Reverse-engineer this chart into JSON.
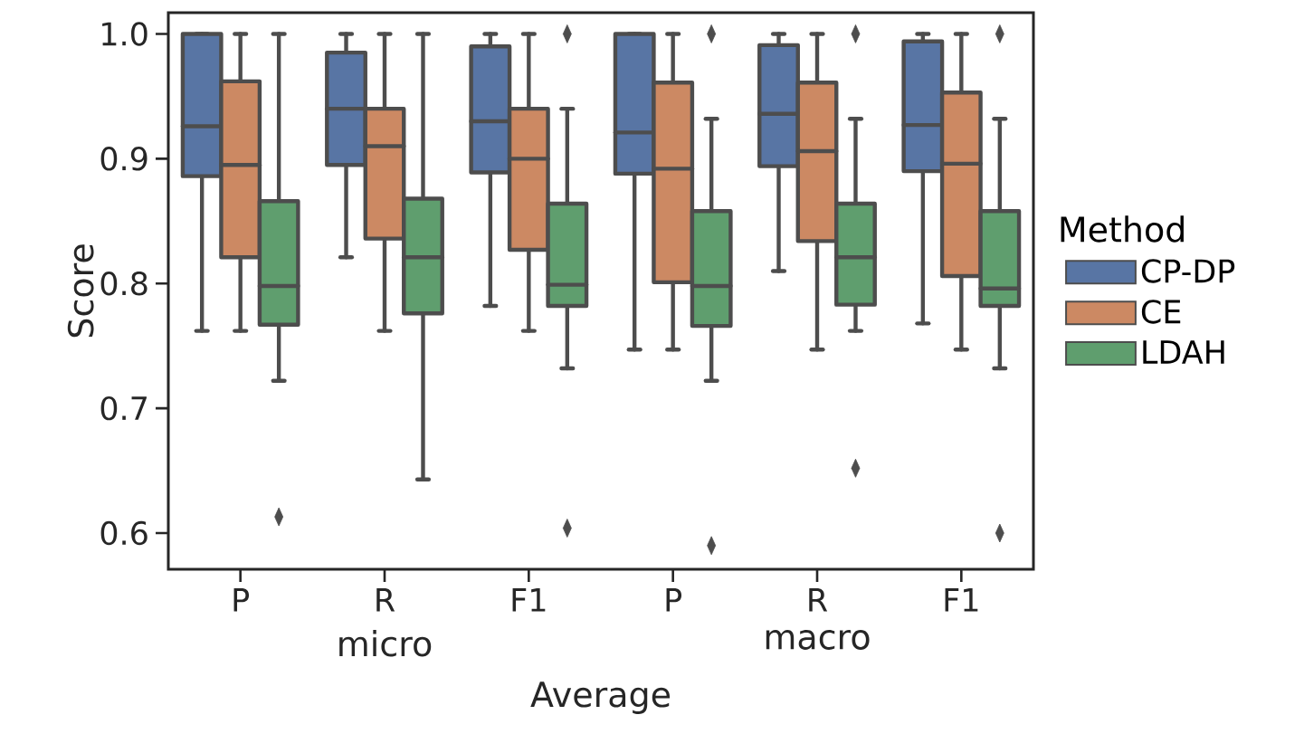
{
  "chart_data": {
    "type": "box",
    "xlabel": "Average",
    "ylabel": "Score",
    "legend_title": "Method",
    "categories": [
      "P",
      "R",
      "F1",
      "P",
      "R",
      "F1"
    ],
    "annotations": [
      "micro",
      "macro"
    ],
    "ylim": [
      0.571,
      1.017
    ],
    "yticks": [
      0.6,
      0.7,
      0.8,
      0.9,
      {
        "value": 1.0,
        "label": "1.0"
      }
    ],
    "legend": "right",
    "marker": "diamond",
    "series": [
      {
        "name": "CP-DP",
        "color": "#5875a4",
        "boxes": [
          {
            "low": 0.762,
            "q1": 0.886,
            "median": 0.926,
            "q3": 1.0,
            "high": 1.0
          },
          {
            "low": 0.821,
            "q1": 0.895,
            "median": 0.94,
            "q3": 0.985,
            "high": 1.0
          },
          {
            "low": 0.782,
            "q1": 0.889,
            "median": 0.93,
            "q3": 0.99,
            "high": 1.0
          },
          {
            "low": 0.747,
            "q1": 0.888,
            "median": 0.921,
            "q3": 1.0,
            "high": 1.0
          },
          {
            "low": 0.81,
            "q1": 0.894,
            "median": 0.936,
            "q3": 0.991,
            "high": 1.0
          },
          {
            "low": 0.768,
            "q1": 0.89,
            "median": 0.927,
            "q3": 0.994,
            "high": 1.0
          }
        ]
      },
      {
        "name": "CE",
        "color": "#cc8963",
        "boxes": [
          {
            "low": 0.762,
            "q1": 0.821,
            "median": 0.895,
            "q3": 0.962,
            "high": 1.0
          },
          {
            "low": 0.762,
            "q1": 0.836,
            "median": 0.91,
            "q3": 0.94,
            "high": 1.0
          },
          {
            "low": 0.762,
            "q1": 0.827,
            "median": 0.9,
            "q3": 0.94,
            "high": 1.0
          },
          {
            "low": 0.747,
            "q1": 0.801,
            "median": 0.892,
            "q3": 0.961,
            "high": 1.0
          },
          {
            "low": 0.747,
            "q1": 0.834,
            "median": 0.906,
            "q3": 0.961,
            "high": 1.0
          },
          {
            "low": 0.747,
            "q1": 0.806,
            "median": 0.896,
            "q3": 0.953,
            "high": 1.0
          }
        ]
      },
      {
        "name": "LDAH",
        "color": "#5f9e6e",
        "boxes": [
          {
            "low": 0.722,
            "q1": 0.767,
            "median": 0.798,
            "q3": 0.866,
            "high": 1.0,
            "outliers": [
              0.613
            ]
          },
          {
            "low": 0.643,
            "q1": 0.776,
            "median": 0.821,
            "q3": 0.868,
            "high": 1.0
          },
          {
            "low": 0.732,
            "q1": 0.782,
            "median": 0.799,
            "q3": 0.864,
            "high": 0.94,
            "outliers": [
              1.0,
              0.604
            ]
          },
          {
            "low": 0.722,
            "q1": 0.766,
            "median": 0.798,
            "q3": 0.858,
            "high": 0.932,
            "outliers": [
              1.0,
              0.59
            ]
          },
          {
            "low": 0.762,
            "q1": 0.783,
            "median": 0.821,
            "q3": 0.864,
            "high": 0.932,
            "outliers": [
              1.0,
              0.652
            ]
          },
          {
            "low": 0.732,
            "q1": 0.782,
            "median": 0.796,
            "q3": 0.858,
            "high": 0.932,
            "outliers": [
              1.0,
              0.6
            ]
          }
        ]
      }
    ]
  }
}
